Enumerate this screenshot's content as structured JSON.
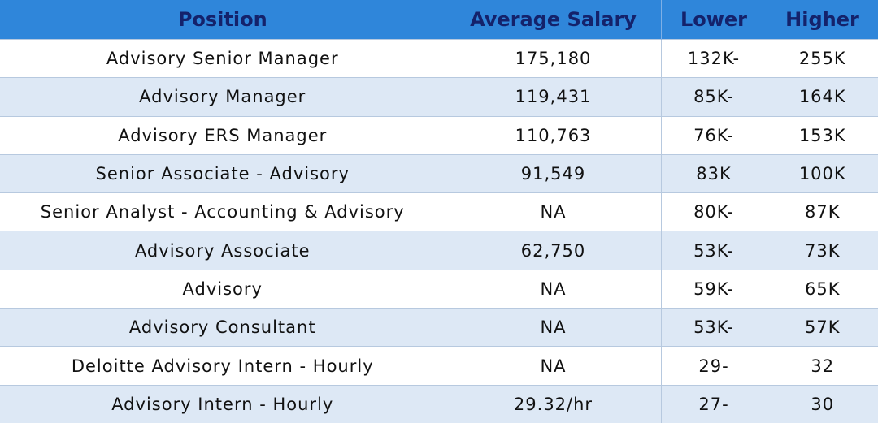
{
  "table": {
    "header": [
      "Position",
      "Average Salary",
      "Lower",
      "Higher"
    ],
    "rows": [
      [
        "Advisory Senior Manager",
        "175,180",
        "132K-",
        "255K"
      ],
      [
        "Advisory Manager",
        "119,431",
        "85K-",
        "164K"
      ],
      [
        "Advisory ERS Manager",
        "110,763",
        "76K-",
        "153K"
      ],
      [
        "Senior Associate - Advisory",
        "91,549",
        "83K",
        "100K"
      ],
      [
        "Senior Analyst - Accounting & Advisory",
        "NA",
        "80K-",
        "87K"
      ],
      [
        "Advisory Associate",
        "62,750",
        "53K-",
        "73K"
      ],
      [
        "Advisory",
        "NA",
        "59K-",
        "65K"
      ],
      [
        "Advisory Consultant",
        "NA",
        "53K-",
        "57K"
      ],
      [
        "Deloitte Advisory Intern - Hourly",
        "NA",
        "29-",
        "32"
      ],
      [
        "Advisory Intern - Hourly",
        "29.32/hr",
        "27-",
        "30"
      ]
    ]
  }
}
